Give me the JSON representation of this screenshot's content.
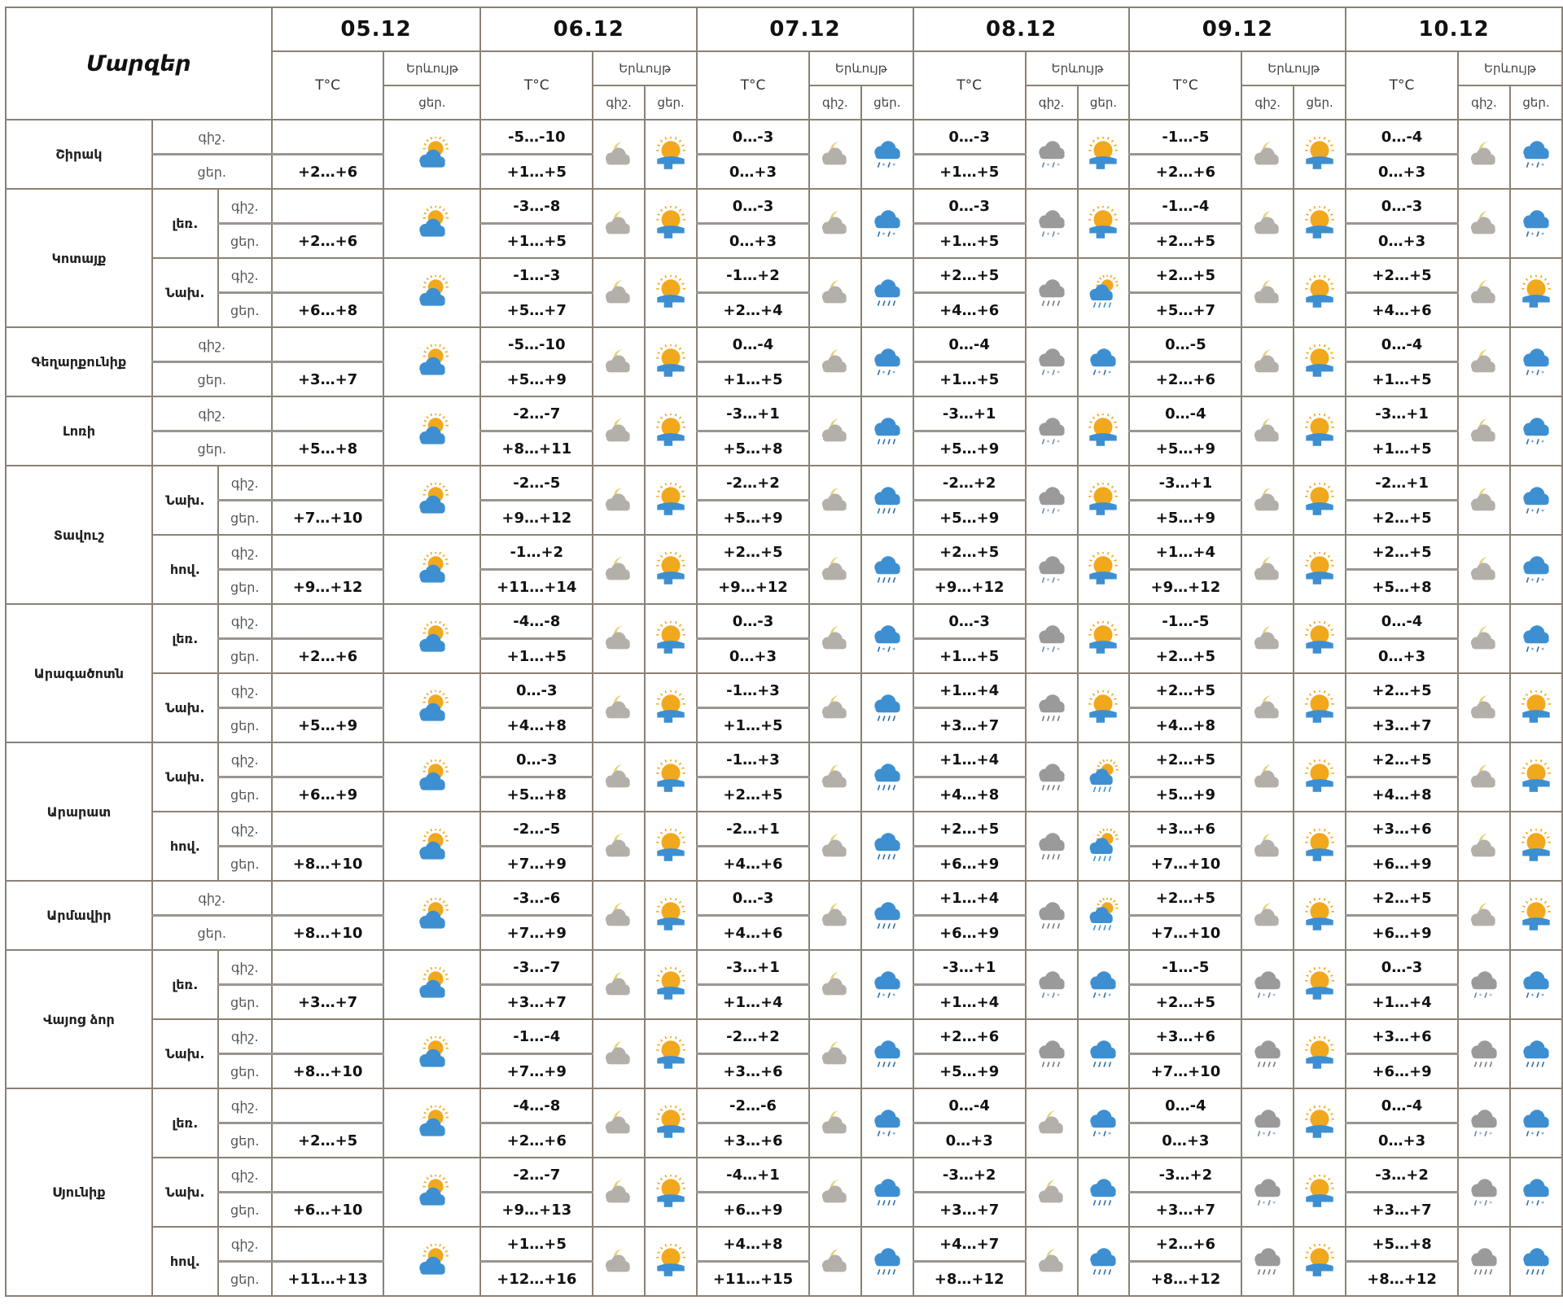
{
  "header": {
    "title": "Մարզեր",
    "temp_label": "T°C",
    "phenomenon_label": "Երևույթ",
    "night_label": "գիշ.",
    "day_label": "ցեր.",
    "dates": [
      "05.12",
      "06.12",
      "07.12",
      "08.12",
      "09.12",
      "10.12"
    ]
  },
  "colors": {
    "border": "#8b8174",
    "cloud_blue": "#3d8fd1",
    "cloud_grey": "#9a9a9a",
    "sun": "#f2a81d"
  },
  "rows": [
    {
      "region": "Շիրակ",
      "zone": "",
      "d05": {
        "day": "+2…+6",
        "icon": "sun-cloud"
      },
      "days": [
        {
          "night": "-5…-10",
          "day": "+1…+5",
          "icon_night": "moon-cloud",
          "icon_day": "sun-rain"
        },
        {
          "night": "0…-3",
          "day": "0…+3",
          "icon_night": "moon-cloud",
          "icon_day": "snow-rain"
        },
        {
          "night": "0…-3",
          "day": "+1…+5",
          "icon_night": "grey-snow",
          "icon_day": "sun-rain"
        },
        {
          "night": "-1…-5",
          "day": "+2…+6",
          "icon_night": "moon-cloud",
          "icon_day": "sun-rain"
        },
        {
          "night": "0…-4",
          "day": "0…+3",
          "icon_night": "moon-cloud",
          "icon_day": "snow-rain"
        }
      ]
    },
    {
      "region": "Կոտայք",
      "zone": "լեռ.",
      "d05": {
        "day": "+2…+6",
        "icon": "sun-cloud"
      },
      "days": [
        {
          "night": "-3…-8",
          "day": "+1…+5",
          "icon_night": "moon-cloud",
          "icon_day": "sun-rain"
        },
        {
          "night": "0…-3",
          "day": "0…+3",
          "icon_night": "moon-cloud",
          "icon_day": "snow-rain"
        },
        {
          "night": "0…-3",
          "day": "+1…+5",
          "icon_night": "grey-snow",
          "icon_day": "sun-rain"
        },
        {
          "night": "-1…-4",
          "day": "+2…+5",
          "icon_night": "moon-cloud",
          "icon_day": "sun-rain"
        },
        {
          "night": "0…-3",
          "day": "0…+3",
          "icon_night": "moon-cloud",
          "icon_day": "snow-rain"
        }
      ]
    },
    {
      "region": "Կոտայք",
      "zone": "Նախ.",
      "d05": {
        "day": "+6…+8",
        "icon": "sun-cloud"
      },
      "days": [
        {
          "night": "-1…-3",
          "day": "+5…+7",
          "icon_night": "moon-cloud",
          "icon_day": "sun-rain"
        },
        {
          "night": "-1…+2",
          "day": "+2…+4",
          "icon_night": "moon-cloud",
          "icon_day": "rain"
        },
        {
          "night": "+2…+5",
          "day": "+4…+6",
          "icon_night": "grey-rain",
          "icon_day": "sun-cloud-rain"
        },
        {
          "night": "+2…+5",
          "day": "+5…+7",
          "icon_night": "moon-cloud",
          "icon_day": "sun-rain"
        },
        {
          "night": "+2…+5",
          "day": "+4…+6",
          "icon_night": "moon-cloud",
          "icon_day": "sun-rain"
        }
      ]
    },
    {
      "region": "Գեղարքունիք",
      "zone": "",
      "d05": {
        "day": "+3…+7",
        "icon": "sun-cloud"
      },
      "days": [
        {
          "night": "-5…-10",
          "day": "+5…+9",
          "icon_night": "moon-cloud",
          "icon_day": "sun-rain"
        },
        {
          "night": "0…-4",
          "day": "+1…+5",
          "icon_night": "moon-cloud",
          "icon_day": "snow-rain"
        },
        {
          "night": "0…-4",
          "day": "+1…+5",
          "icon_night": "grey-snow",
          "icon_day": "snow-rain"
        },
        {
          "night": "0…-5",
          "day": "+2…+6",
          "icon_night": "moon-cloud",
          "icon_day": "sun-rain"
        },
        {
          "night": "0…-4",
          "day": "+1…+5",
          "icon_night": "moon-cloud",
          "icon_day": "snow-rain"
        }
      ]
    },
    {
      "region": "Լոռի",
      "zone": "",
      "d05": {
        "day": "+5…+8",
        "icon": "sun-cloud"
      },
      "days": [
        {
          "night": "-2…-7",
          "day": "+8…+11",
          "icon_night": "moon-cloud",
          "icon_day": "sun-rain"
        },
        {
          "night": "-3…+1",
          "day": "+5…+8",
          "icon_night": "moon-cloud",
          "icon_day": "rain"
        },
        {
          "night": "-3…+1",
          "day": "+5…+9",
          "icon_night": "grey-snow",
          "icon_day": "sun-rain"
        },
        {
          "night": "0…-4",
          "day": "+5…+9",
          "icon_night": "moon-cloud",
          "icon_day": "sun-rain"
        },
        {
          "night": "-3…+1",
          "day": "+1…+5",
          "icon_night": "moon-cloud",
          "icon_day": "snow-rain"
        }
      ]
    },
    {
      "region": "Տավուշ",
      "zone": "Նախ.",
      "d05": {
        "day": "+7…+10",
        "icon": "sun-cloud"
      },
      "days": [
        {
          "night": "-2…-5",
          "day": "+9…+12",
          "icon_night": "moon-cloud",
          "icon_day": "sun-rain"
        },
        {
          "night": "-2…+2",
          "day": "+5…+9",
          "icon_night": "moon-cloud",
          "icon_day": "rain"
        },
        {
          "night": "-2…+2",
          "day": "+5…+9",
          "icon_night": "grey-snow",
          "icon_day": "sun-rain"
        },
        {
          "night": "-3…+1",
          "day": "+5…+9",
          "icon_night": "moon-cloud",
          "icon_day": "sun-rain"
        },
        {
          "night": "-2…+1",
          "day": "+2…+5",
          "icon_night": "moon-cloud",
          "icon_day": "snow-rain"
        }
      ]
    },
    {
      "region": "Տավուշ",
      "zone": "հով.",
      "d05": {
        "day": "+9…+12",
        "icon": "sun-cloud"
      },
      "days": [
        {
          "night": "-1…+2",
          "day": "+11…+14",
          "icon_night": "moon-cloud",
          "icon_day": "sun-rain"
        },
        {
          "night": "+2…+5",
          "day": "+9…+12",
          "icon_night": "moon-cloud",
          "icon_day": "rain"
        },
        {
          "night": "+2…+5",
          "day": "+9…+12",
          "icon_night": "grey-snow",
          "icon_day": "sun-rain"
        },
        {
          "night": "+1…+4",
          "day": "+9…+12",
          "icon_night": "moon-cloud",
          "icon_day": "sun-rain"
        },
        {
          "night": "+2…+5",
          "day": "+5…+8",
          "icon_night": "moon-cloud",
          "icon_day": "snow-rain"
        }
      ]
    },
    {
      "region": "Արագածոտն",
      "zone": "լեռ.",
      "d05": {
        "day": "+2…+6",
        "icon": "sun-cloud"
      },
      "days": [
        {
          "night": "-4…-8",
          "day": "+1…+5",
          "icon_night": "moon-cloud",
          "icon_day": "sun-rain"
        },
        {
          "night": "0…-3",
          "day": "0…+3",
          "icon_night": "moon-cloud",
          "icon_day": "snow-rain"
        },
        {
          "night": "0…-3",
          "day": "+1…+5",
          "icon_night": "grey-snow",
          "icon_day": "sun-rain"
        },
        {
          "night": "-1…-5",
          "day": "+2…+5",
          "icon_night": "moon-cloud",
          "icon_day": "sun-rain"
        },
        {
          "night": "0…-4",
          "day": "0…+3",
          "icon_night": "moon-cloud",
          "icon_day": "snow-rain"
        }
      ]
    },
    {
      "region": "Արագածոտն",
      "zone": "Նախ.",
      "d05": {
        "day": "+5…+9",
        "icon": "sun-cloud"
      },
      "days": [
        {
          "night": "0…-3",
          "day": "+4…+8",
          "icon_night": "moon-cloud",
          "icon_day": "sun-rain"
        },
        {
          "night": "-1…+3",
          "day": "+1…+5",
          "icon_night": "moon-cloud",
          "icon_day": "rain"
        },
        {
          "night": "+1…+4",
          "day": "+3…+7",
          "icon_night": "grey-rain",
          "icon_day": "sun-rain"
        },
        {
          "night": "+2…+5",
          "day": "+4…+8",
          "icon_night": "moon-cloud",
          "icon_day": "sun-rain"
        },
        {
          "night": "+2…+5",
          "day": "+3…+7",
          "icon_night": "moon-cloud",
          "icon_day": "sun-rain"
        }
      ]
    },
    {
      "region": "Արարատ",
      "zone": "Նախ.",
      "d05": {
        "day": "+6…+9",
        "icon": "sun-cloud"
      },
      "days": [
        {
          "night": "0…-3",
          "day": "+5…+8",
          "icon_night": "moon-cloud",
          "icon_day": "sun-rain"
        },
        {
          "night": "-1…+3",
          "day": "+2…+5",
          "icon_night": "moon-cloud",
          "icon_day": "rain"
        },
        {
          "night": "+1…+4",
          "day": "+4…+8",
          "icon_night": "grey-rain",
          "icon_day": "sun-cloud-rain"
        },
        {
          "night": "+2…+5",
          "day": "+5…+9",
          "icon_night": "moon-cloud",
          "icon_day": "sun-rain"
        },
        {
          "night": "+2…+5",
          "day": "+4…+8",
          "icon_night": "moon-cloud",
          "icon_day": "sun-rain"
        }
      ]
    },
    {
      "region": "Արարատ",
      "zone": "հով.",
      "d05": {
        "day": "+8…+10",
        "icon": "sun-cloud"
      },
      "days": [
        {
          "night": "-2…-5",
          "day": "+7…+9",
          "icon_night": "moon-cloud",
          "icon_day": "sun-rain"
        },
        {
          "night": "-2…+1",
          "day": "+4…+6",
          "icon_night": "moon-cloud",
          "icon_day": "rain"
        },
        {
          "night": "+2…+5",
          "day": "+6…+9",
          "icon_night": "grey-rain",
          "icon_day": "sun-cloud-rain"
        },
        {
          "night": "+3…+6",
          "day": "+7…+10",
          "icon_night": "moon-cloud",
          "icon_day": "sun-rain"
        },
        {
          "night": "+3…+6",
          "day": "+6…+9",
          "icon_night": "moon-cloud",
          "icon_day": "sun-rain"
        }
      ]
    },
    {
      "region": "Արմավիր",
      "zone": "",
      "d05": {
        "day": "+8…+10",
        "icon": "sun-cloud"
      },
      "days": [
        {
          "night": "-3…-6",
          "day": "+7…+9",
          "icon_night": "moon-cloud",
          "icon_day": "sun-rain"
        },
        {
          "night": "0…-3",
          "day": "+4…+6",
          "icon_night": "moon-cloud",
          "icon_day": "rain"
        },
        {
          "night": "+1…+4",
          "day": "+6…+9",
          "icon_night": "grey-rain",
          "icon_day": "sun-cloud-rain"
        },
        {
          "night": "+2…+5",
          "day": "+7…+10",
          "icon_night": "moon-cloud",
          "icon_day": "sun-rain"
        },
        {
          "night": "+2…+5",
          "day": "+6…+9",
          "icon_night": "moon-cloud",
          "icon_day": "sun-rain"
        }
      ]
    },
    {
      "region": "Վայոց ձոր",
      "zone": "լեռ.",
      "d05": {
        "day": "+3…+7",
        "icon": "sun-cloud"
      },
      "days": [
        {
          "night": "-3…-7",
          "day": "+3…+7",
          "icon_night": "moon-cloud",
          "icon_day": "sun-rain"
        },
        {
          "night": "-3…+1",
          "day": "+1…+4",
          "icon_night": "moon-cloud",
          "icon_day": "snow-rain"
        },
        {
          "night": "-3…+1",
          "day": "+1…+4",
          "icon_night": "grey-snow",
          "icon_day": "snow-rain"
        },
        {
          "night": "-1…-5",
          "day": "+2…+5",
          "icon_night": "grey-snow",
          "icon_day": "sun-rain"
        },
        {
          "night": "0…-3",
          "day": "+1…+4",
          "icon_night": "grey-snow",
          "icon_day": "snow-rain"
        }
      ]
    },
    {
      "region": "Վայոց ձոր",
      "zone": "Նախ.",
      "d05": {
        "day": "+8…+10",
        "icon": "sun-cloud"
      },
      "days": [
        {
          "night": "-1…-4",
          "day": "+7…+9",
          "icon_night": "moon-cloud",
          "icon_day": "sun-rain"
        },
        {
          "night": "-2…+2",
          "day": "+3…+6",
          "icon_night": "moon-cloud",
          "icon_day": "rain"
        },
        {
          "night": "+2…+6",
          "day": "+5…+9",
          "icon_night": "grey-rain",
          "icon_day": "rain"
        },
        {
          "night": "+3…+6",
          "day": "+7…+10",
          "icon_night": "grey-rain",
          "icon_day": "sun-rain"
        },
        {
          "night": "+3…+6",
          "day": "+6…+9",
          "icon_night": "grey-rain",
          "icon_day": "rain"
        }
      ]
    },
    {
      "region": "Սյունիք",
      "zone": "լեռ.",
      "d05": {
        "day": "+2…+5",
        "icon": "sun-cloud"
      },
      "days": [
        {
          "night": "-4…-8",
          "day": "+2…+6",
          "icon_night": "moon-cloud",
          "icon_day": "sun-rain"
        },
        {
          "night": "-2…-6",
          "day": "+3…+6",
          "icon_night": "moon-cloud",
          "icon_day": "snow-rain"
        },
        {
          "night": "0…-4",
          "day": "0…+3",
          "icon_night": "moon-cloud",
          "icon_day": "snow-rain"
        },
        {
          "night": "0…-4",
          "day": "0…+3",
          "icon_night": "grey-snow",
          "icon_day": "sun-rain"
        },
        {
          "night": "0…-4",
          "day": "0…+3",
          "icon_night": "grey-snow",
          "icon_day": "snow-rain"
        }
      ]
    },
    {
      "region": "Սյունիք",
      "zone": "Նախ.",
      "d05": {
        "day": "+6…+10",
        "icon": "sun-cloud"
      },
      "days": [
        {
          "night": "-2…-7",
          "day": "+9…+13",
          "icon_night": "moon-cloud",
          "icon_day": "sun-rain"
        },
        {
          "night": "-4…+1",
          "day": "+6…+9",
          "icon_night": "moon-cloud",
          "icon_day": "rain"
        },
        {
          "night": "-3…+2",
          "day": "+3…+7",
          "icon_night": "moon-cloud",
          "icon_day": "rain"
        },
        {
          "night": "-3…+2",
          "day": "+3…+7",
          "icon_night": "grey-snow",
          "icon_day": "sun-rain"
        },
        {
          "night": "-3…+2",
          "day": "+3…+7",
          "icon_night": "grey-snow",
          "icon_day": "snow-rain"
        }
      ]
    },
    {
      "region": "Սյունիք",
      "zone": "հով.",
      "d05": {
        "day": "+11…+13",
        "icon": "sun-cloud"
      },
      "days": [
        {
          "night": "+1…+5",
          "day": "+12…+16",
          "icon_night": "moon-cloud",
          "icon_day": "sun-rain"
        },
        {
          "night": "+4…+8",
          "day": "+11…+15",
          "icon_night": "moon-cloud",
          "icon_day": "rain"
        },
        {
          "night": "+4…+7",
          "day": "+8…+12",
          "icon_night": "moon-cloud",
          "icon_day": "rain"
        },
        {
          "night": "+2…+6",
          "day": "+8…+12",
          "icon_night": "grey-rain",
          "icon_day": "sun-rain"
        },
        {
          "night": "+5…+8",
          "day": "+8…+12",
          "icon_night": "grey-rain",
          "icon_day": "rain"
        }
      ]
    }
  ]
}
